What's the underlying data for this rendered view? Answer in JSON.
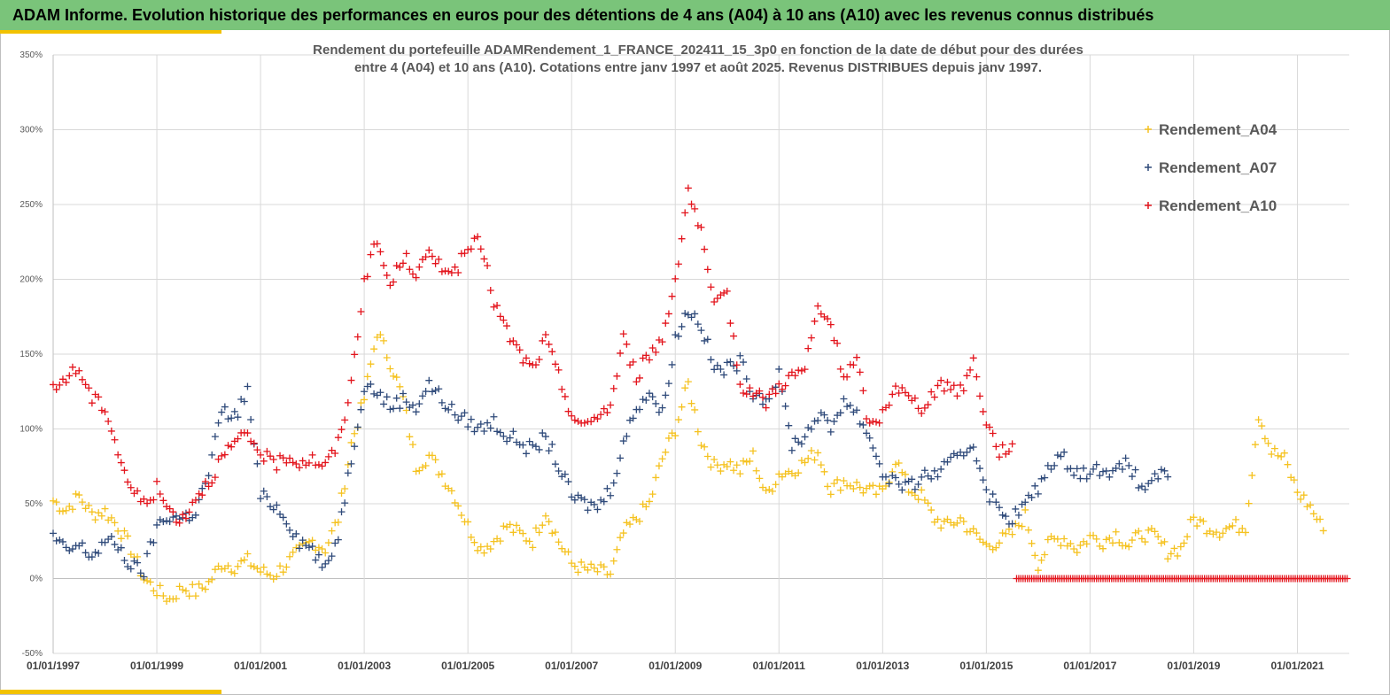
{
  "header": {
    "title": "ADAM Informe. Evolution historique des performances en euros pour des détentions de 4 ans (A04) à 10 ans (A10) avec les revenus connus distribués"
  },
  "colors": {
    "banner": "#7ac47a",
    "accent": "#f2c200",
    "A04": "#f5c220",
    "A07": "#2f4a7a",
    "A10": "#e3141c"
  },
  "chart_data": {
    "type": "scatter",
    "title_lines": [
      "Rendement du portefeuille ADAMRendement_1_FRANCE_202411_15_3p0  en fonction de la date de début pour des durées",
      "entre 4 (A04) et 10 ans (A10). Cotations entre janv 1997 et août 2025. Revenus DISTRIBUES depuis janv 1997."
    ],
    "xlabel": "",
    "ylabel": "",
    "xlim": [
      "1997-01-01",
      "2022-01-01"
    ],
    "ylim": [
      -50,
      350
    ],
    "y_unit": "%",
    "x_ticks": [
      "01/01/1997",
      "01/01/1999",
      "01/01/2001",
      "01/01/2003",
      "01/01/2005",
      "01/01/2007",
      "01/01/2009",
      "01/01/2011",
      "01/01/2013",
      "01/01/2015",
      "01/01/2017",
      "01/01/2019",
      "01/01/2021"
    ],
    "y_ticks": [
      -50,
      0,
      50,
      100,
      150,
      200,
      250,
      300,
      350
    ],
    "grid": true,
    "legend_position": "top-right",
    "marker": "+",
    "series": [
      {
        "name": "Rendement_A04",
        "color": "#f5c220",
        "points": [
          [
            "1997-01",
            52
          ],
          [
            "1997-04",
            46
          ],
          [
            "1997-07",
            55
          ],
          [
            "1997-10",
            43
          ],
          [
            "1998-01",
            45
          ],
          [
            "1998-04",
            35
          ],
          [
            "1998-07",
            20
          ],
          [
            "1998-10",
            0
          ],
          [
            "1999-01",
            -8
          ],
          [
            "1999-04",
            -14
          ],
          [
            "1999-07",
            -6
          ],
          [
            "1999-10",
            -9
          ],
          [
            "2000-01",
            -3
          ],
          [
            "2000-04",
            10
          ],
          [
            "2000-07",
            8
          ],
          [
            "2000-10",
            12
          ],
          [
            "2001-01",
            5
          ],
          [
            "2001-04",
            2
          ],
          [
            "2001-07",
            10
          ],
          [
            "2001-10",
            18
          ],
          [
            "2002-01",
            25
          ],
          [
            "2002-04",
            20
          ],
          [
            "2002-07",
            40
          ],
          [
            "2002-10",
            90
          ],
          [
            "2003-01",
            120
          ],
          [
            "2003-04",
            165
          ],
          [
            "2003-07",
            145
          ],
          [
            "2003-10",
            120
          ],
          [
            "2004-01",
            75
          ],
          [
            "2004-04",
            82
          ],
          [
            "2004-07",
            70
          ],
          [
            "2004-10",
            55
          ],
          [
            "2005-01",
            35
          ],
          [
            "2005-04",
            20
          ],
          [
            "2005-07",
            25
          ],
          [
            "2005-10",
            35
          ],
          [
            "2006-01",
            30
          ],
          [
            "2006-04",
            25
          ],
          [
            "2006-07",
            45
          ],
          [
            "2006-10",
            25
          ],
          [
            "2007-01",
            10
          ],
          [
            "2007-04",
            6
          ],
          [
            "2007-07",
            5
          ],
          [
            "2007-10",
            3
          ],
          [
            "2008-01",
            30
          ],
          [
            "2008-04",
            40
          ],
          [
            "2008-07",
            50
          ],
          [
            "2008-10",
            80
          ],
          [
            "2009-01",
            100
          ],
          [
            "2009-04",
            130
          ],
          [
            "2009-07",
            92
          ],
          [
            "2009-10",
            75
          ],
          [
            "2010-01",
            78
          ],
          [
            "2010-04",
            72
          ],
          [
            "2010-07",
            82
          ],
          [
            "2010-10",
            55
          ],
          [
            "2011-01",
            70
          ],
          [
            "2011-04",
            72
          ],
          [
            "2011-07",
            78
          ],
          [
            "2011-10",
            85
          ],
          [
            "2012-01",
            60
          ],
          [
            "2012-04",
            65
          ],
          [
            "2012-07",
            62
          ],
          [
            "2012-10",
            58
          ],
          [
            "2013-01",
            57
          ],
          [
            "2013-04",
            80
          ],
          [
            "2013-07",
            60
          ],
          [
            "2013-10",
            55
          ],
          [
            "2014-01",
            40
          ],
          [
            "2014-04",
            35
          ],
          [
            "2014-07",
            40
          ],
          [
            "2014-10",
            30
          ],
          [
            "2015-01",
            22
          ],
          [
            "2015-04",
            25
          ],
          [
            "2015-07",
            30
          ],
          [
            "2015-10",
            42
          ],
          [
            "2016-01",
            10
          ],
          [
            "2016-04",
            25
          ],
          [
            "2016-07",
            27
          ],
          [
            "2016-10",
            20
          ],
          [
            "2017-01",
            28
          ],
          [
            "2017-04",
            25
          ],
          [
            "2017-07",
            30
          ],
          [
            "2017-10",
            22
          ],
          [
            "2018-01",
            30
          ],
          [
            "2018-04",
            28
          ],
          [
            "2018-07",
            18
          ],
          [
            "2018-10",
            20
          ],
          [
            "2019-01",
            40
          ],
          [
            "2019-04",
            35
          ],
          [
            "2019-07",
            32
          ],
          [
            "2019-10",
            35
          ],
          [
            "2020-01",
            35
          ],
          [
            "2020-04",
            110
          ],
          [
            "2020-07",
            85
          ],
          [
            "2020-10",
            80
          ],
          [
            "2021-01",
            58
          ],
          [
            "2021-04",
            48
          ],
          [
            "2021-07",
            32
          ]
        ]
      },
      {
        "name": "Rendement_A07",
        "color": "#2f4a7a",
        "points": [
          [
            "1997-01",
            28
          ],
          [
            "1997-04",
            18
          ],
          [
            "1997-07",
            22
          ],
          [
            "1997-10",
            15
          ],
          [
            "1998-01",
            25
          ],
          [
            "1998-04",
            22
          ],
          [
            "1998-07",
            8
          ],
          [
            "1998-10",
            5
          ],
          [
            "1999-01",
            35
          ],
          [
            "1999-04",
            42
          ],
          [
            "1999-07",
            40
          ],
          [
            "1999-10",
            45
          ],
          [
            "2000-01",
            70
          ],
          [
            "2000-04",
            112
          ],
          [
            "2000-07",
            108
          ],
          [
            "2000-10",
            125
          ],
          [
            "2001-01",
            55
          ],
          [
            "2001-04",
            50
          ],
          [
            "2001-07",
            40
          ],
          [
            "2001-10",
            25
          ],
          [
            "2002-01",
            20
          ],
          [
            "2002-04",
            5
          ],
          [
            "2002-07",
            30
          ],
          [
            "2002-10",
            80
          ],
          [
            "2003-01",
            130
          ],
          [
            "2003-04",
            125
          ],
          [
            "2003-07",
            115
          ],
          [
            "2003-10",
            120
          ],
          [
            "2004-01",
            115
          ],
          [
            "2004-04",
            130
          ],
          [
            "2004-07",
            120
          ],
          [
            "2004-10",
            110
          ],
          [
            "2005-01",
            105
          ],
          [
            "2005-04",
            100
          ],
          [
            "2005-07",
            105
          ],
          [
            "2005-10",
            95
          ],
          [
            "2006-01",
            92
          ],
          [
            "2006-04",
            85
          ],
          [
            "2006-07",
            95
          ],
          [
            "2006-10",
            75
          ],
          [
            "2007-01",
            55
          ],
          [
            "2007-04",
            50
          ],
          [
            "2007-07",
            48
          ],
          [
            "2007-10",
            60
          ],
          [
            "2008-01",
            90
          ],
          [
            "2008-04",
            115
          ],
          [
            "2008-07",
            125
          ],
          [
            "2008-10",
            110
          ],
          [
            "2009-01",
            160
          ],
          [
            "2009-04",
            180
          ],
          [
            "2009-07",
            170
          ],
          [
            "2009-10",
            140
          ],
          [
            "2010-01",
            140
          ],
          [
            "2010-04",
            145
          ],
          [
            "2010-07",
            125
          ],
          [
            "2010-10",
            120
          ],
          [
            "2011-01",
            135
          ],
          [
            "2011-04",
            90
          ],
          [
            "2011-07",
            95
          ],
          [
            "2011-10",
            110
          ],
          [
            "2012-01",
            100
          ],
          [
            "2012-04",
            120
          ],
          [
            "2012-07",
            110
          ],
          [
            "2012-10",
            95
          ],
          [
            "2013-01",
            70
          ],
          [
            "2013-04",
            65
          ],
          [
            "2013-07",
            60
          ],
          [
            "2013-10",
            68
          ],
          [
            "2014-01",
            70
          ],
          [
            "2014-04",
            75
          ],
          [
            "2014-07",
            82
          ],
          [
            "2014-10",
            90
          ],
          [
            "2015-01",
            60
          ],
          [
            "2015-04",
            45
          ],
          [
            "2015-07",
            40
          ],
          [
            "2015-10",
            50
          ],
          [
            "2016-01",
            60
          ],
          [
            "2016-04",
            78
          ],
          [
            "2016-07",
            80
          ],
          [
            "2016-10",
            72
          ],
          [
            "2017-01",
            70
          ],
          [
            "2017-04",
            75
          ],
          [
            "2017-07",
            70
          ],
          [
            "2017-10",
            78
          ],
          [
            "2018-01",
            58
          ],
          [
            "2018-04",
            70
          ],
          [
            "2018-07",
            68
          ]
        ]
      },
      {
        "name": "Rendement_A10",
        "color": "#e3141c",
        "points": [
          [
            "1997-01",
            125
          ],
          [
            "1997-04",
            135
          ],
          [
            "1997-07",
            140
          ],
          [
            "1997-10",
            120
          ],
          [
            "1998-01",
            115
          ],
          [
            "1998-04",
            85
          ],
          [
            "1998-07",
            60
          ],
          [
            "1998-10",
            50
          ],
          [
            "1999-01",
            60
          ],
          [
            "1999-04",
            45
          ],
          [
            "1999-07",
            40
          ],
          [
            "1999-10",
            55
          ],
          [
            "2000-01",
            65
          ],
          [
            "2000-04",
            80
          ],
          [
            "2000-07",
            90
          ],
          [
            "2000-10",
            95
          ],
          [
            "2001-01",
            85
          ],
          [
            "2001-04",
            75
          ],
          [
            "2001-07",
            82
          ],
          [
            "2001-10",
            78
          ],
          [
            "2002-01",
            80
          ],
          [
            "2002-04",
            75
          ],
          [
            "2002-07",
            90
          ],
          [
            "2002-10",
            130
          ],
          [
            "2003-01",
            200
          ],
          [
            "2003-04",
            225
          ],
          [
            "2003-07",
            195
          ],
          [
            "2003-10",
            215
          ],
          [
            "2004-01",
            205
          ],
          [
            "2004-04",
            215
          ],
          [
            "2004-07",
            210
          ],
          [
            "2004-10",
            205
          ],
          [
            "2005-01",
            220
          ],
          [
            "2005-04",
            225
          ],
          [
            "2005-07",
            185
          ],
          [
            "2005-10",
            165
          ],
          [
            "2006-01",
            150
          ],
          [
            "2006-04",
            140
          ],
          [
            "2006-07",
            160
          ],
          [
            "2006-10",
            135
          ],
          [
            "2007-01",
            110
          ],
          [
            "2007-04",
            100
          ],
          [
            "2007-07",
            110
          ],
          [
            "2007-10",
            115
          ],
          [
            "2008-01",
            160
          ],
          [
            "2008-04",
            135
          ],
          [
            "2008-07",
            150
          ],
          [
            "2008-10",
            160
          ],
          [
            "2009-01",
            200
          ],
          [
            "2009-04",
            260
          ],
          [
            "2009-07",
            230
          ],
          [
            "2009-10",
            180
          ],
          [
            "2010-01",
            190
          ],
          [
            "2010-04",
            130
          ],
          [
            "2010-07",
            125
          ],
          [
            "2010-10",
            118
          ],
          [
            "2011-01",
            130
          ],
          [
            "2011-04",
            135
          ],
          [
            "2011-07",
            140
          ],
          [
            "2011-10",
            180
          ],
          [
            "2012-01",
            170
          ],
          [
            "2012-04",
            135
          ],
          [
            "2012-07",
            145
          ],
          [
            "2012-10",
            100
          ],
          [
            "2013-01",
            110
          ],
          [
            "2013-04",
            130
          ],
          [
            "2013-07",
            120
          ],
          [
            "2013-10",
            115
          ],
          [
            "2014-01",
            125
          ],
          [
            "2014-04",
            130
          ],
          [
            "2014-07",
            125
          ],
          [
            "2014-10",
            145
          ],
          [
            "2015-01",
            105
          ],
          [
            "2015-04",
            85
          ],
          [
            "2015-07",
            90
          ]
        ]
      }
    ],
    "zero_band": {
      "series": "Rendement_A10",
      "from": "2015-08",
      "to": "2022-01",
      "value": 0
    }
  }
}
